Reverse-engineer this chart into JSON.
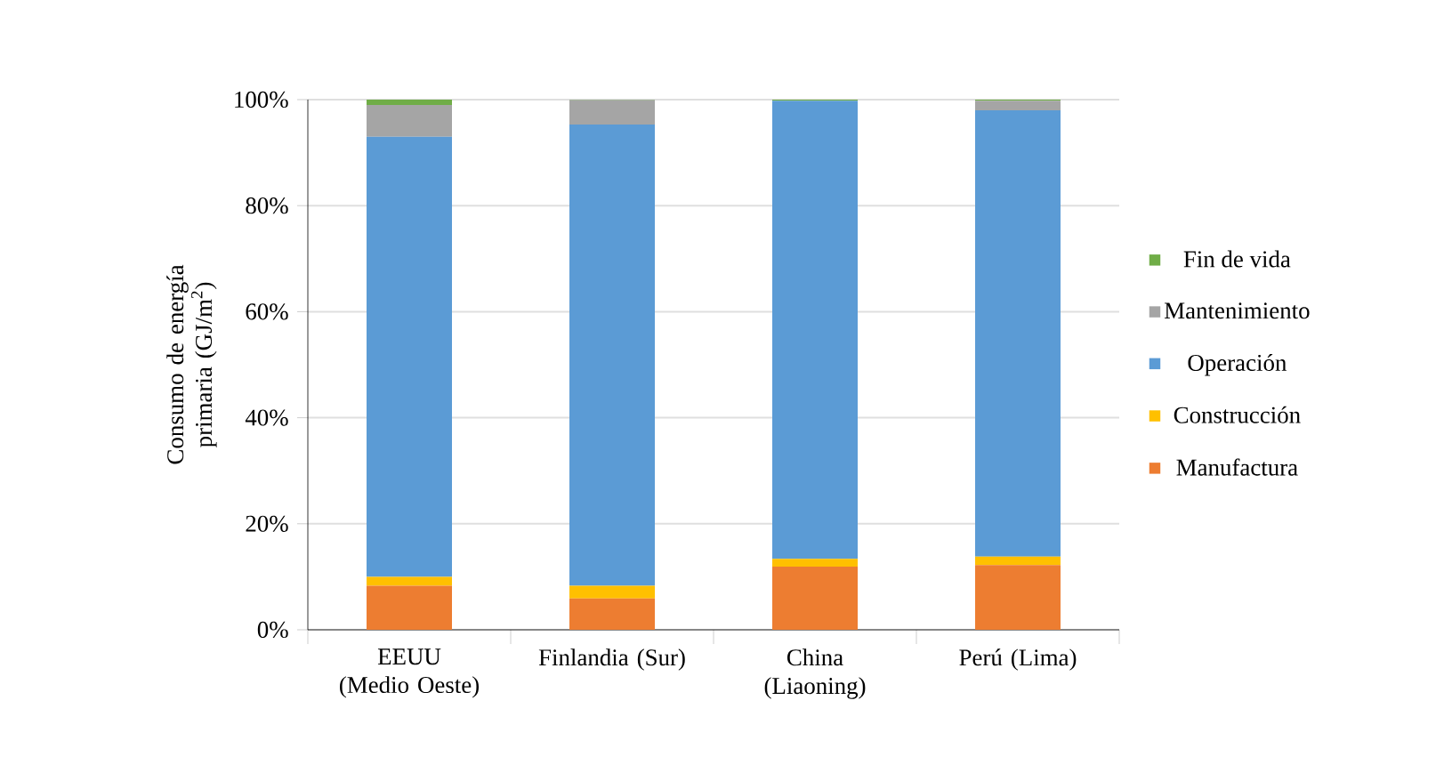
{
  "chart_data": {
    "type": "bar",
    "stacked": true,
    "ylabel": "Consumo de energía primaria (GJ/m$^{2}$)",
    "categories": [
      "EEUU (Medio Oeste)",
      "Finlandia (Sur)",
      "China (Liaoning)",
      "Perú (Lima)"
    ],
    "series": [
      {
        "name": "Manufactura",
        "color": "#ed7d31",
        "values": [
          8.3,
          5.9,
          11.9,
          12.2
        ]
      },
      {
        "name": "Construcción",
        "color": "#ffc000",
        "values": [
          1.7,
          2.4,
          1.5,
          1.6
        ]
      },
      {
        "name": "Operación",
        "color": "#5b9bd5",
        "values": [
          83.0,
          87.0,
          86.4,
          84.2
        ]
      },
      {
        "name": "Mantenimiento",
        "color": "#a5a5a5",
        "values": [
          6.0,
          4.6,
          0.0,
          1.8
        ]
      },
      {
        "name": "Fin de vida",
        "color": "#70ad47",
        "values": [
          1.0,
          0.1,
          0.2,
          0.2
        ]
      }
    ],
    "ylim": [
      0,
      100
    ],
    "yticks": [
      {
        "value": 0,
        "label": "0%"
      },
      {
        "value": 20,
        "label": "20%"
      },
      {
        "value": 40,
        "label": "40%"
      },
      {
        "value": 60,
        "label": "60%"
      },
      {
        "value": 80,
        "label": "80%"
      },
      {
        "value": 100,
        "label": "100%"
      }
    ],
    "grid": "y",
    "legend": "right"
  }
}
